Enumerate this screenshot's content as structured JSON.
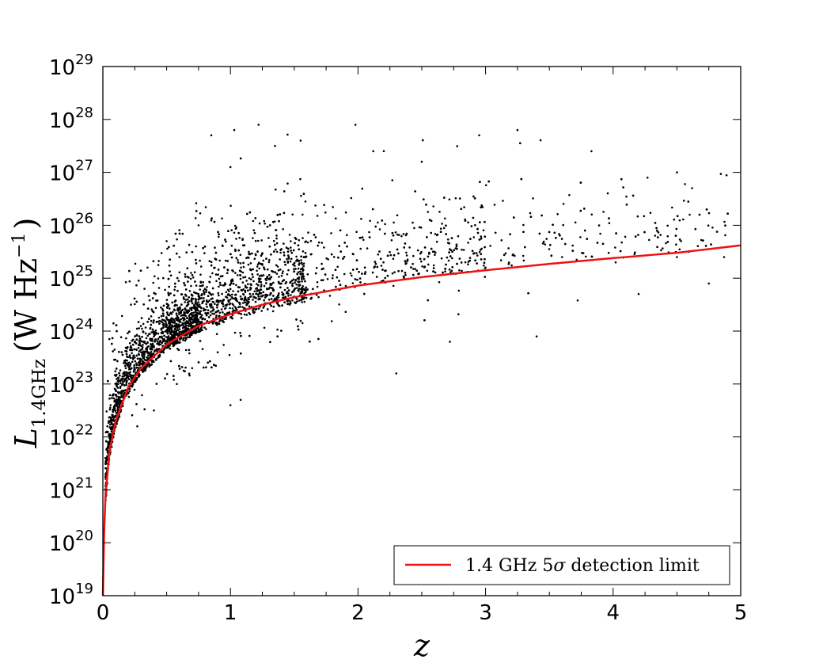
{
  "chart_data": {
    "type": "scatter",
    "title": "",
    "xlabel": "z",
    "ylabel": {
      "symbol": "L",
      "subscript": "1.4GHz",
      "units_open": "(W Hz",
      "units_exp": "−1",
      "units_close": ")"
    },
    "xlim": [
      0,
      5
    ],
    "ylim_log10": [
      19,
      29
    ],
    "y_scale": "log",
    "x_ticks": [
      "0",
      "1",
      "2",
      "3",
      "4",
      "5"
    ],
    "y_ticks": [
      {
        "base": "10",
        "exp": "19"
      },
      {
        "base": "10",
        "exp": "20"
      },
      {
        "base": "10",
        "exp": "21"
      },
      {
        "base": "10",
        "exp": "22"
      },
      {
        "base": "10",
        "exp": "23"
      },
      {
        "base": "10",
        "exp": "24"
      },
      {
        "base": "10",
        "exp": "25"
      },
      {
        "base": "10",
        "exp": "26"
      },
      {
        "base": "10",
        "exp": "27"
      },
      {
        "base": "10",
        "exp": "28"
      },
      {
        "base": "10",
        "exp": "29"
      }
    ],
    "grid": false,
    "legend_position": "bottom-right",
    "series": [
      {
        "name": "",
        "kind": "scatter",
        "color": "#000000",
        "sample_log_points": [
          [
            0.02,
            21.6
          ],
          [
            0.03,
            22.1
          ],
          [
            0.05,
            22.3
          ],
          [
            0.06,
            22.6
          ],
          [
            0.08,
            22.5
          ],
          [
            0.1,
            22.8
          ],
          [
            0.12,
            23.0
          ],
          [
            0.15,
            23.1
          ],
          [
            0.18,
            23.3
          ],
          [
            0.2,
            23.2
          ],
          [
            0.25,
            23.5
          ],
          [
            0.3,
            23.6
          ],
          [
            0.35,
            23.7
          ],
          [
            0.4,
            23.9
          ],
          [
            0.45,
            23.8
          ],
          [
            0.5,
            24.0
          ],
          [
            0.6,
            24.1
          ],
          [
            0.7,
            24.3
          ],
          [
            0.8,
            24.4
          ],
          [
            0.9,
            24.5
          ],
          [
            1.0,
            24.6
          ],
          [
            1.1,
            24.7
          ],
          [
            1.2,
            24.8
          ],
          [
            1.3,
            24.8
          ],
          [
            1.4,
            24.9
          ],
          [
            0.22,
            24.5
          ],
          [
            0.35,
            25.2
          ],
          [
            0.5,
            25.7
          ],
          [
            0.6,
            25.4
          ],
          [
            0.75,
            26.0
          ],
          [
            0.85,
            27.7
          ],
          [
            1.03,
            27.8
          ],
          [
            1.22,
            27.9
          ],
          [
            1.0,
            27.1
          ],
          [
            1.35,
            27.5
          ],
          [
            1.55,
            27.6
          ],
          [
            1.98,
            27.9
          ],
          [
            2.12,
            27.4
          ],
          [
            2.5,
            27.2
          ],
          [
            2.95,
            27.7
          ],
          [
            3.25,
            27.8
          ],
          [
            3.83,
            27.4
          ],
          [
            4.5,
            27.0
          ],
          [
            4.27,
            26.9
          ],
          [
            4.6,
            26.2
          ],
          [
            1.0,
            22.6
          ],
          [
            1.08,
            22.7
          ],
          [
            2.3,
            23.2
          ],
          [
            2.72,
            23.8
          ],
          [
            3.4,
            23.9
          ],
          [
            4.2,
            24.7
          ],
          [
            4.75,
            24.9
          ],
          [
            4.5,
            25.4
          ],
          [
            4.87,
            25.4
          ],
          [
            4.02,
            25.3
          ],
          [
            3.6,
            25.4
          ],
          [
            3.0,
            25.2
          ],
          [
            2.6,
            25.5
          ],
          [
            2.2,
            25.3
          ],
          [
            1.8,
            25.0
          ],
          [
            0.27,
            22.2
          ],
          [
            0.4,
            22.5
          ],
          [
            0.58,
            23.0
          ],
          [
            0.7,
            23.3
          ],
          [
            0.9,
            23.6
          ]
        ],
        "point_count_approx": 4000
      },
      {
        "name": "1.4 GHz 5σ detection limit",
        "kind": "line",
        "color": "#ee1111",
        "curve_log_points": [
          [
            0.0,
            19.0
          ],
          [
            0.01,
            20.2
          ],
          [
            0.02,
            20.85
          ],
          [
            0.05,
            21.7
          ],
          [
            0.1,
            22.3
          ],
          [
            0.2,
            22.95
          ],
          [
            0.3,
            23.3
          ],
          [
            0.5,
            23.75
          ],
          [
            0.75,
            24.1
          ],
          [
            1.0,
            24.32
          ],
          [
            1.25,
            24.5
          ],
          [
            1.5,
            24.64
          ],
          [
            2.0,
            24.86
          ],
          [
            2.5,
            25.02
          ],
          [
            3.0,
            25.15
          ],
          [
            3.5,
            25.27
          ],
          [
            4.0,
            25.38
          ],
          [
            4.5,
            25.48
          ],
          [
            5.0,
            25.62
          ]
        ]
      }
    ],
    "legend": {
      "entries": [
        {
          "prefix": "1.4 GHz 5",
          "sigma": "σ",
          "suffix": " detection limit",
          "color": "#ee1111"
        }
      ]
    }
  }
}
